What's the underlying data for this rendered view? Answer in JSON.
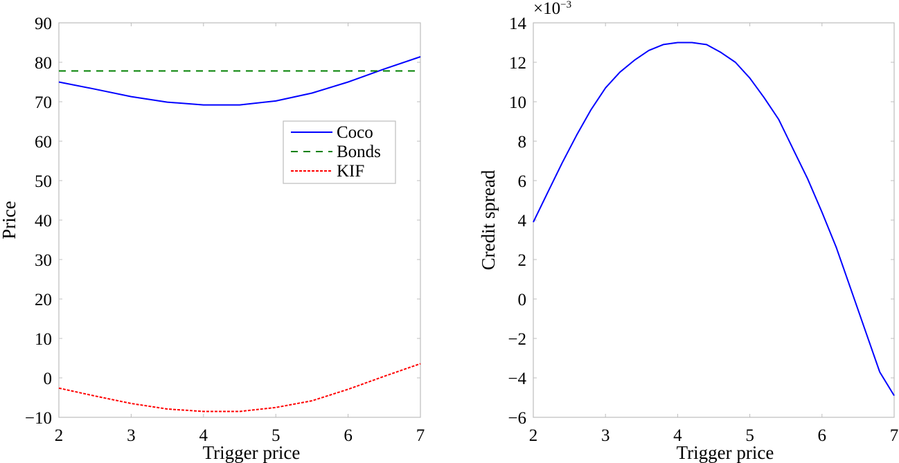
{
  "chart_data": [
    {
      "type": "line",
      "panel": "left",
      "title": "",
      "xlabel": "Trigger price",
      "ylabel": "Price",
      "xlim": [
        2,
        7
      ],
      "ylim": [
        -10,
        90
      ],
      "xticks": [
        "2",
        "3",
        "4",
        "5",
        "6",
        "7"
      ],
      "yticks": [
        "−10",
        "0",
        "10",
        "20",
        "30",
        "40",
        "50",
        "60",
        "70",
        "80",
        "90"
      ],
      "grid": false,
      "legend_position": "center-right",
      "x": [
        2,
        2.5,
        3,
        3.5,
        4,
        4.5,
        5,
        5.5,
        6,
        6.5,
        7
      ],
      "series": [
        {
          "name": "Coco",
          "style": "solid",
          "color": "#0000ff",
          "values": [
            75.0,
            73.2,
            71.3,
            69.9,
            69.2,
            69.2,
            70.2,
            72.2,
            75.0,
            78.3,
            81.4
          ]
        },
        {
          "name": "Bonds",
          "style": "dashed",
          "color": "#008000",
          "values": [
            77.8,
            77.8,
            77.8,
            77.8,
            77.8,
            77.8,
            77.8,
            77.8,
            77.8,
            77.8,
            77.8
          ]
        },
        {
          "name": "KIF",
          "style": "dotted",
          "color": "#ff0000",
          "values": [
            -2.6,
            -4.6,
            -6.5,
            -7.9,
            -8.5,
            -8.5,
            -7.5,
            -5.8,
            -2.9,
            0.4,
            3.6
          ]
        }
      ]
    },
    {
      "type": "line",
      "panel": "right",
      "title": "",
      "xlabel": "Trigger price",
      "ylabel": "Credit spread",
      "y_multiplier": "×10",
      "y_multiplier_exp": "−3",
      "xlim": [
        2,
        7
      ],
      "ylim": [
        -6,
        14
      ],
      "xticks": [
        "2",
        "3",
        "4",
        "5",
        "6",
        "7"
      ],
      "yticks": [
        "−6",
        "−4",
        "−2",
        "0",
        "2",
        "4",
        "6",
        "8",
        "10",
        "12",
        "14"
      ],
      "grid": false,
      "x": [
        2,
        2.2,
        2.4,
        2.6,
        2.8,
        3,
        3.2,
        3.4,
        3.6,
        3.8,
        4,
        4.2,
        4.4,
        4.6,
        4.8,
        5,
        5.2,
        5.4,
        5.6,
        5.8,
        6,
        6.2,
        6.4,
        6.6,
        6.8,
        7
      ],
      "series": [
        {
          "name": "Credit spread",
          "style": "solid",
          "color": "#0000ff",
          "values": [
            3.9,
            5.4,
            6.9,
            8.3,
            9.6,
            10.7,
            11.5,
            12.1,
            12.6,
            12.9,
            13.0,
            13.0,
            12.9,
            12.5,
            12.0,
            11.2,
            10.2,
            9.1,
            7.6,
            6.1,
            4.4,
            2.6,
            0.5,
            -1.6,
            -3.7,
            -4.9
          ]
        }
      ]
    }
  ],
  "left": {
    "ylabel": "Price",
    "xlabel": "Trigger price",
    "legend": [
      {
        "label": "Coco"
      },
      {
        "label": "Bonds"
      },
      {
        "label": "KIF"
      }
    ]
  },
  "right": {
    "ylabel": "Credit spread",
    "xlabel": "Trigger price",
    "multiplier": "×10",
    "multiplier_exp": "−3"
  }
}
